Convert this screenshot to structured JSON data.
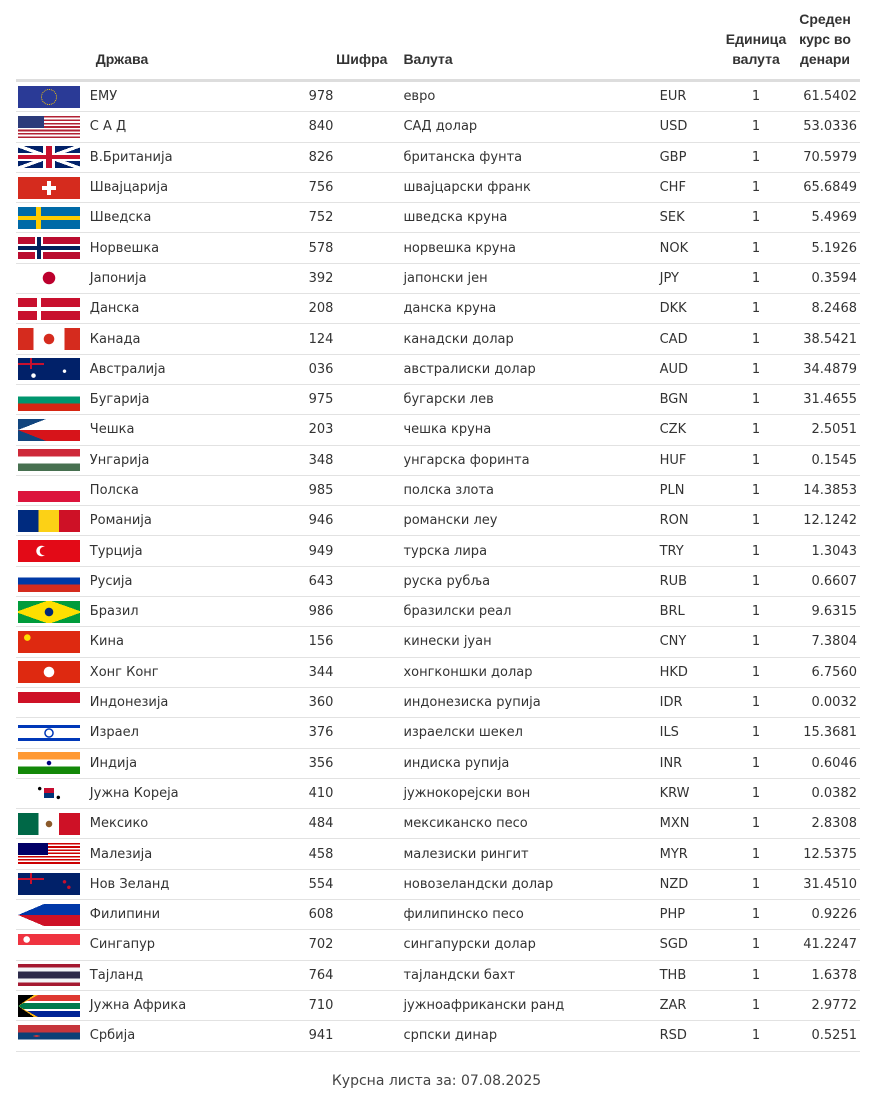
{
  "headers": {
    "country": "Држава",
    "code": "Шифра",
    "currency": "Валута",
    "unit": "Единица валута",
    "rate": "Среден курс во денари"
  },
  "rows": [
    {
      "flag": "eur",
      "country": "ЕМУ",
      "code": "978",
      "currency": "евро",
      "iso": "EUR",
      "unit": "1",
      "rate": "61.5402"
    },
    {
      "flag": "usd",
      "country": "С А Д",
      "code": "840",
      "currency": "САД долар",
      "iso": "USD",
      "unit": "1",
      "rate": "53.0336"
    },
    {
      "flag": "gbp",
      "country": "В.Британија",
      "code": "826",
      "currency": "британска фунта",
      "iso": "GBP",
      "unit": "1",
      "rate": "70.5979"
    },
    {
      "flag": "chf",
      "country": "Швајцарија",
      "code": "756",
      "currency": "швајцарски франк",
      "iso": "CHF",
      "unit": "1",
      "rate": "65.6849"
    },
    {
      "flag": "sek",
      "country": "Шведска",
      "code": "752",
      "currency": "шведска круна",
      "iso": "SEK",
      "unit": "1",
      "rate": "5.4969"
    },
    {
      "flag": "nok",
      "country": "Норвешка",
      "code": "578",
      "currency": "норвешка круна",
      "iso": "NOK",
      "unit": "1",
      "rate": "5.1926"
    },
    {
      "flag": "jpy",
      "country": "Јапонија",
      "code": "392",
      "currency": "јапонски јен",
      "iso": "JPY",
      "unit": "1",
      "rate": "0.3594"
    },
    {
      "flag": "dkk",
      "country": "Данска",
      "code": "208",
      "currency": "данска круна",
      "iso": "DKK",
      "unit": "1",
      "rate": "8.2468"
    },
    {
      "flag": "cad",
      "country": "Канада",
      "code": "124",
      "currency": "канадски долар",
      "iso": "CAD",
      "unit": "1",
      "rate": "38.5421"
    },
    {
      "flag": "aud",
      "country": "Австралија",
      "code": "036",
      "currency": "австралиски долар",
      "iso": "AUD",
      "unit": "1",
      "rate": "34.4879"
    },
    {
      "flag": "bgn",
      "country": "Бугарија",
      "code": "975",
      "currency": "бугарски лев",
      "iso": "BGN",
      "unit": "1",
      "rate": "31.4655"
    },
    {
      "flag": "czk",
      "country": "Чешка",
      "code": "203",
      "currency": "чешка круна",
      "iso": "CZK",
      "unit": "1",
      "rate": "2.5051"
    },
    {
      "flag": "huf",
      "country": "Унгарија",
      "code": "348",
      "currency": "унгарска форинта",
      "iso": "HUF",
      "unit": "1",
      "rate": "0.1545"
    },
    {
      "flag": "pln",
      "country": "Полска",
      "code": "985",
      "currency": "полска злота",
      "iso": "PLN",
      "unit": "1",
      "rate": "14.3853"
    },
    {
      "flag": "ron",
      "country": "Романија",
      "code": "946",
      "currency": "романски леу",
      "iso": "RON",
      "unit": "1",
      "rate": "12.1242"
    },
    {
      "flag": "try",
      "country": "Турција",
      "code": "949",
      "currency": "турска лира",
      "iso": "TRY",
      "unit": "1",
      "rate": "1.3043"
    },
    {
      "flag": "rub",
      "country": "Русија",
      "code": "643",
      "currency": "руска рубља",
      "iso": "RUB",
      "unit": "1",
      "rate": "0.6607"
    },
    {
      "flag": "brl",
      "country": "Бразил",
      "code": "986",
      "currency": "бразилски реал",
      "iso": "BRL",
      "unit": "1",
      "rate": "9.6315"
    },
    {
      "flag": "cny",
      "country": "Кина",
      "code": "156",
      "currency": "кинески јуан",
      "iso": "CNY",
      "unit": "1",
      "rate": "7.3804"
    },
    {
      "flag": "hkd",
      "country": "Хонг Конг",
      "code": "344",
      "currency": "хонгконшки долар",
      "iso": "HKD",
      "unit": "1",
      "rate": "6.7560"
    },
    {
      "flag": "idr",
      "country": "Индонезија",
      "code": "360",
      "currency": "индонезиска рупија",
      "iso": "IDR",
      "unit": "1",
      "rate": "0.0032"
    },
    {
      "flag": "ils",
      "country": "Израел",
      "code": "376",
      "currency": "израелски шекел",
      "iso": "ILS",
      "unit": "1",
      "rate": "15.3681"
    },
    {
      "flag": "inr",
      "country": "Индија",
      "code": "356",
      "currency": "индиска рупија",
      "iso": "INR",
      "unit": "1",
      "rate": "0.6046"
    },
    {
      "flag": "krw",
      "country": "Јужна Кореја",
      "code": "410",
      "currency": "јужнокорејски вон",
      "iso": "KRW",
      "unit": "1",
      "rate": "0.0382"
    },
    {
      "flag": "mxn",
      "country": "Мексико",
      "code": "484",
      "currency": "мексиканско песо",
      "iso": "MXN",
      "unit": "1",
      "rate": "2.8308"
    },
    {
      "flag": "myr",
      "country": "Малезија",
      "code": "458",
      "currency": "малезиски рингит",
      "iso": "MYR",
      "unit": "1",
      "rate": "12.5375"
    },
    {
      "flag": "nzd",
      "country": "Нов Зеланд",
      "code": "554",
      "currency": "новозеландски долар",
      "iso": "NZD",
      "unit": "1",
      "rate": "31.4510"
    },
    {
      "flag": "php",
      "country": "Филипини",
      "code": "608",
      "currency": "филипинско песо",
      "iso": "PHP",
      "unit": "1",
      "rate": "0.9226"
    },
    {
      "flag": "sgd",
      "country": "Сингапур",
      "code": "702",
      "currency": "сингапурски долар",
      "iso": "SGD",
      "unit": "1",
      "rate": "41.2247"
    },
    {
      "flag": "thb",
      "country": "Тајланд",
      "code": "764",
      "currency": "тајландски бахт",
      "iso": "THB",
      "unit": "1",
      "rate": "1.6378"
    },
    {
      "flag": "zar",
      "country": "Јужна Африка",
      "code": "710",
      "currency": "јужноафрикански ранд",
      "iso": "ZAR",
      "unit": "1",
      "rate": "2.9772"
    },
    {
      "flag": "rsd",
      "country": "Србија",
      "code": "941",
      "currency": "српски динар",
      "iso": "RSD",
      "unit": "1",
      "rate": "0.5251"
    }
  ],
  "footer": {
    "text": "Курсна листа за: 07.08.2025"
  }
}
